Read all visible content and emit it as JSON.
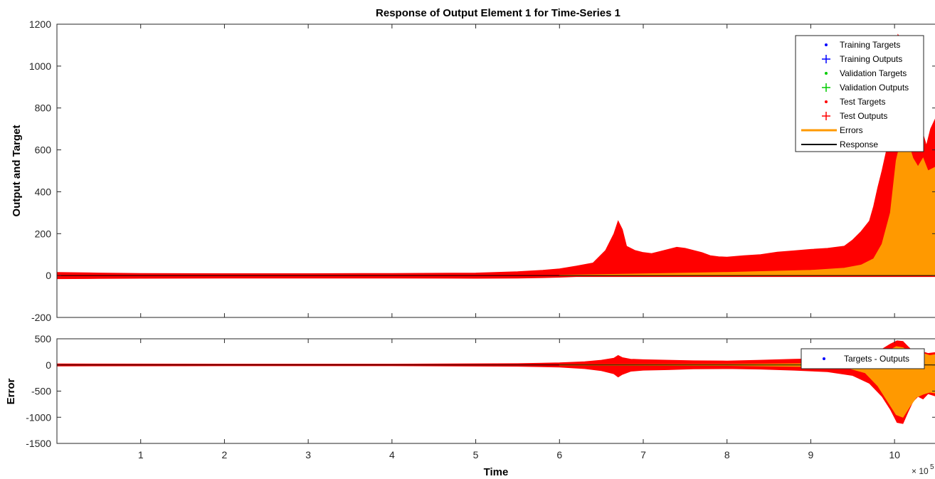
{
  "chart_data": [
    {
      "type": "line",
      "title": "Response of Output Element 1 for Time-Series 1",
      "xlabel": "",
      "ylabel": "Output and Target",
      "xlim": [
        0,
        105000
      ],
      "ylim": [
        -200,
        1200
      ],
      "yticks": [
        -200,
        0,
        200,
        400,
        600,
        800,
        1000,
        1200
      ],
      "legend_placement": "top-right",
      "legend": [
        {
          "label": "Training Targets",
          "marker": "dot",
          "color": "#0000ff"
        },
        {
          "label": "Training Outputs",
          "marker": "plus",
          "color": "#0000ff"
        },
        {
          "label": "Validation Targets",
          "marker": "dot",
          "color": "#00cc00"
        },
        {
          "label": "Validation Outputs",
          "marker": "plus",
          "color": "#00cc00"
        },
        {
          "label": "Test Targets",
          "marker": "dot",
          "color": "#ff0000"
        },
        {
          "label": "Test Outputs",
          "marker": "plus",
          "color": "#ff0000"
        },
        {
          "label": "Errors",
          "marker": "line",
          "color": "#ff9900"
        },
        {
          "label": "Response",
          "marker": "line",
          "color": "#000000"
        }
      ],
      "series": [
        {
          "name": "Test Outputs",
          "color": "#ff0000",
          "x": [
            0,
            5000,
            10000,
            20000,
            30000,
            40000,
            50000,
            55000,
            58000,
            60000,
            62000,
            64000,
            65500,
            66500,
            67000,
            67500,
            68000,
            69000,
            70000,
            71000,
            72000,
            73000,
            74000,
            75000,
            76000,
            77000,
            78000,
            79000,
            80000,
            82000,
            84000,
            86000,
            88000,
            90000,
            92000,
            94000,
            95000,
            96000,
            97000,
            97500,
            98000,
            98500,
            99000,
            99500,
            100000,
            100400,
            100800,
            101200,
            101800,
            102300,
            102800,
            103300,
            103800,
            104300,
            105000
          ],
          "upper": [
            15,
            12,
            10,
            9,
            9,
            10,
            12,
            18,
            25,
            32,
            45,
            60,
            120,
            200,
            260,
            220,
            140,
            120,
            110,
            105,
            115,
            125,
            135,
            130,
            120,
            110,
            95,
            90,
            88,
            95,
            100,
            112,
            118,
            125,
            130,
            140,
            170,
            210,
            260,
            330,
            420,
            500,
            590,
            700,
            900,
            1150,
            1130,
            950,
            820,
            720,
            650,
            690,
            620,
            700,
            760
          ],
          "lower": [
            -15,
            -14,
            -13,
            -12,
            -12,
            -12,
            -13,
            -12,
            -10,
            -8,
            -5,
            -5,
            -5,
            -5,
            -5,
            -5,
            -5,
            -5,
            -5,
            -5,
            -5,
            -5,
            -5,
            -5,
            -5,
            -5,
            -5,
            -5,
            -5,
            -5,
            -5,
            -5,
            -5,
            -5,
            -5,
            -5,
            -5,
            -5,
            -5,
            -5,
            -5,
            -5,
            -5,
            -5,
            -5,
            -5,
            -5,
            -5,
            -5,
            -5,
            -5,
            -5,
            -5,
            -5,
            -5
          ]
        },
        {
          "name": "Errors",
          "color": "#ff9900",
          "x": [
            60000,
            70000,
            80000,
            90000,
            94000,
            96000,
            97500,
            98500,
            99500,
            100200,
            100800,
            101500,
            102200,
            102800,
            103400,
            104000,
            105000
          ],
          "upper": [
            2,
            8,
            15,
            25,
            35,
            50,
            80,
            150,
            300,
            550,
            650,
            650,
            560,
            520,
            560,
            500,
            520
          ],
          "lower": [
            0,
            0,
            0,
            0,
            0,
            0,
            0,
            0,
            0,
            0,
            0,
            0,
            0,
            0,
            0,
            0,
            0
          ]
        }
      ]
    },
    {
      "type": "line",
      "title": "",
      "xlabel": "Time",
      "ylabel": "Error",
      "xlim": [
        0,
        105000
      ],
      "ylim": [
        -1500,
        500
      ],
      "yticks": [
        -1500,
        -1000,
        -500,
        0,
        500
      ],
      "xticks": [
        1,
        2,
        3,
        4,
        5,
        6,
        7,
        8,
        9,
        10
      ],
      "x_exponent": "× 10",
      "x_exponent_power": "5",
      "legend_placement": "top-right",
      "legend": [
        {
          "label": "Targets - Outputs",
          "marker": "dot",
          "color": "#0000ff"
        }
      ],
      "series": [
        {
          "name": "Targets - Outputs",
          "color": "#ff0000",
          "x": [
            0,
            20000,
            40000,
            55000,
            60000,
            63000,
            65000,
            66500,
            67000,
            67500,
            68500,
            70000,
            73000,
            76000,
            80000,
            84000,
            88000,
            92000,
            95000,
            97000,
            98500,
            99500,
            100300,
            101000,
            101600,
            102200,
            102800,
            103400,
            104000,
            105000
          ],
          "upper": [
            20,
            15,
            15,
            25,
            40,
            60,
            90,
            130,
            180,
            140,
            110,
            100,
            90,
            80,
            75,
            90,
            110,
            120,
            150,
            210,
            300,
            400,
            460,
            450,
            350,
            260,
            230,
            250,
            220,
            240
          ],
          "lower": [
            -20,
            -15,
            -15,
            -25,
            -40,
            -70,
            -110,
            -170,
            -230,
            -180,
            -120,
            -100,
            -90,
            -75,
            -70,
            -80,
            -100,
            -130,
            -200,
            -350,
            -600,
            -850,
            -1100,
            -1120,
            -900,
            -700,
            -600,
            -650,
            -550,
            -600
          ]
        },
        {
          "name": "Errors",
          "color": "#ff9900",
          "x": [
            60000,
            80000,
            94000,
            96500,
            98000,
            99200,
            100200,
            101000,
            101800,
            102600,
            103400,
            104200,
            105000
          ],
          "upper": [
            5,
            10,
            30,
            80,
            150,
            260,
            350,
            330,
            250,
            200,
            220,
            180,
            200
          ],
          "lower": [
            -5,
            -10,
            -40,
            -150,
            -400,
            -700,
            -950,
            -1000,
            -800,
            -620,
            -560,
            -520,
            -540
          ]
        }
      ]
    }
  ]
}
